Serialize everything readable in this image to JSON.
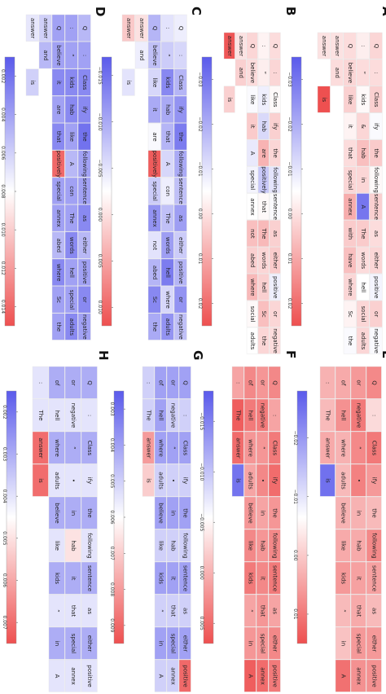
{
  "chart_data": [
    {
      "type": "heatmap",
      "panel": "A",
      "colorbar": {
        "ticks": [
          "−0.03",
          "−0.02",
          "−0.01",
          "0.00",
          "0.01",
          "0.02"
        ],
        "vmin": -0.035,
        "vmax": 0.025
      },
      "rows": [
        [
          "Q",
          ":",
          "Class",
          "ify",
          "the",
          "following",
          "sentence",
          "as",
          "either",
          "positive",
          "or",
          "negative"
        ],
        [
          ":",
          "“",
          "kids",
          "&",
          "hab",
          "in",
          "A",
          "The",
          "words",
          "hell",
          "social",
          "adults"
        ],
        [
          "Q",
          "believe",
          "like",
          "it",
          "that",
          "special",
          "annex",
          "with",
          "have",
          "where",
          "Sc",
          "the"
        ],
        [
          "answer",
          "and",
          "",
          "",
          "",
          "",
          "",
          "",
          "",
          "",
          "",
          ""
        ],
        [
          "answer",
          "",
          "is",
          "",
          "",
          "",
          "",
          "",
          "",
          "",
          "",
          ""
        ]
      ],
      "values": [
        [
          0.002,
          0.001,
          0.003,
          -0.006,
          0.004,
          -0.004,
          0.003,
          0.001,
          0.002,
          -0.007,
          0.003,
          -0.006
        ],
        [
          -0.002,
          0.001,
          -0.004,
          0.002,
          0.006,
          0.002,
          -0.03,
          0.004,
          0.001,
          -0.005,
          0.002,
          0.002
        ],
        [
          0.001,
          0.002,
          0.003,
          -0.003,
          0.001,
          0.002,
          0.009,
          0.004,
          0.006,
          0.002,
          -0.003,
          -0.006
        ],
        [
          0.0,
          0.001,
          null,
          null,
          null,
          null,
          null,
          null,
          null,
          null,
          null,
          null
        ],
        [
          0.0,
          null,
          0.025,
          null,
          null,
          null,
          null,
          null,
          null,
          null,
          null,
          null
        ]
      ]
    },
    {
      "type": "heatmap",
      "panel": "B",
      "colorbar": {
        "ticks": [
          "−0.03",
          "−0.02",
          "−0.01",
          "0.00",
          "0.01",
          "0.02"
        ],
        "vmin": -0.035,
        "vmax": 0.025
      },
      "rows": [
        [
          "Q",
          ":",
          "Class",
          "ify",
          "the",
          "following",
          "sentence",
          "as",
          "either",
          "positive",
          "or",
          "negative"
        ],
        [
          ":",
          "“",
          "kids",
          "hab",
          "are",
          "positively",
          "that",
          "The",
          "words",
          "hell",
          "Sc",
          "the"
        ],
        [
          "Q",
          "believe",
          "like",
          "it",
          "A",
          "special",
          "annex",
          "not",
          "abed",
          "where",
          "social",
          "adults"
        ],
        [
          "answer",
          "and",
          "",
          "",
          "",
          "",
          "",
          "",
          "",
          "",
          "",
          ""
        ],
        [
          "answer",
          "",
          "is",
          "",
          "",
          "",
          "",
          "",
          "",
          "",
          "",
          ""
        ]
      ],
      "values": [
        [
          0.001,
          0.002,
          -0.004,
          0.003,
          0.002,
          -0.01,
          -0.006,
          0.003,
          0.004,
          -0.008,
          0.002,
          0.001
        ],
        [
          -0.003,
          -0.002,
          -0.008,
          -0.012,
          0.008,
          -0.015,
          -0.004,
          0.007,
          0.002,
          0.003,
          0.006,
          0.002
        ],
        [
          0.002,
          0.001,
          -0.006,
          0.004,
          -0.009,
          -0.007,
          -0.005,
          0.006,
          0.003,
          0.007,
          -0.004,
          -0.005
        ],
        [
          0.0,
          0.003,
          null,
          null,
          null,
          null,
          null,
          null,
          null,
          null,
          null,
          null
        ],
        [
          0.024,
          null,
          0.003,
          null,
          null,
          null,
          null,
          null,
          null,
          null,
          null,
          null
        ]
      ]
    },
    {
      "type": "heatmap",
      "panel": "C",
      "colorbar": {
        "ticks": [
          "−0.015",
          "−0.010",
          "−0.005",
          "0.000",
          "0.005",
          "0.010"
        ],
        "vmin": -0.017,
        "vmax": 0.012
      },
      "rows": [
        [
          "Q",
          ":",
          "Class",
          "ify",
          "the",
          "following",
          "sentence",
          "as",
          "either",
          "positive",
          "or",
          "negative"
        ],
        [
          ":",
          "“",
          "kids",
          "hab",
          "that",
          "A",
          "con",
          "The",
          "words",
          "hell",
          "where",
          "adults"
        ],
        [
          "Q",
          "believe",
          "like",
          "it",
          "are",
          "positively",
          "special",
          "annex",
          "not",
          "abed",
          "Sc",
          "the"
        ],
        [
          "answer",
          "and",
          "",
          "",
          "",
          "",
          "",
          "",
          "",
          "",
          "",
          ""
        ],
        [
          "answer",
          "",
          "is",
          "",
          "",
          "",
          "",
          "",
          "",
          "",
          "",
          ""
        ]
      ],
      "values": [
        [
          -0.004,
          -0.006,
          -0.009,
          -0.012,
          -0.014,
          -0.01,
          -0.008,
          -0.011,
          -0.007,
          -0.009,
          -0.012,
          -0.008
        ],
        [
          -0.005,
          -0.007,
          -0.013,
          -0.01,
          -0.009,
          -0.006,
          -0.004,
          -0.008,
          -0.011,
          -0.014,
          -0.006,
          -0.012
        ],
        [
          -0.009,
          -0.008,
          -0.006,
          -0.01,
          -0.003,
          0.011,
          -0.007,
          -0.012,
          -0.005,
          -0.009,
          -0.013,
          -0.01
        ],
        [
          0.0,
          -0.004,
          null,
          null,
          null,
          null,
          null,
          null,
          null,
          null,
          null,
          null
        ],
        [
          0.002,
          null,
          -0.005,
          null,
          null,
          null,
          null,
          null,
          null,
          null,
          null,
          null
        ]
      ]
    },
    {
      "type": "heatmap",
      "panel": "D",
      "colorbar": {
        "ticks": [
          "0.002",
          "0.004",
          "0.006",
          "0.008",
          "0.010",
          "0.012",
          "0.014"
        ],
        "vmin": 0.001,
        "vmax": 0.015
      },
      "rows": [
        [
          "Q",
          ":",
          "Class",
          "ify",
          "the",
          "following",
          "sentence",
          "as",
          "either",
          "positive",
          "or",
          "negative"
        ],
        [
          ":",
          "“",
          "kids",
          "hab",
          "like",
          "A",
          "con",
          "The",
          "words",
          "hell",
          "special",
          "adults"
        ],
        [
          "Q",
          "believe",
          "it",
          "are",
          "that",
          "positively",
          "special",
          "annex",
          "abed",
          "where",
          "Sc",
          "the"
        ],
        [
          "answer",
          "and",
          "",
          "",
          "",
          "",
          "",
          "",
          "",
          "",
          "",
          ""
        ],
        [
          "answer",
          "",
          "is",
          "",
          "",
          "",
          "",
          "",
          "",
          "",
          "",
          ""
        ]
      ],
      "values": [
        [
          0.005,
          0.004,
          0.003,
          0.003,
          0.002,
          0.004,
          0.004,
          0.003,
          0.005,
          0.004,
          0.003,
          0.004
        ],
        [
          0.004,
          0.004,
          0.003,
          0.003,
          0.004,
          0.005,
          0.004,
          0.004,
          0.003,
          0.004,
          0.004,
          0.003
        ],
        [
          0.004,
          0.004,
          0.003,
          0.004,
          0.003,
          0.014,
          0.004,
          0.004,
          0.005,
          0.003,
          0.004,
          0.004
        ],
        [
          0.006,
          0.005,
          null,
          null,
          null,
          null,
          null,
          null,
          null,
          null,
          null,
          null
        ],
        [
          0.007,
          null,
          0.006,
          null,
          null,
          null,
          null,
          null,
          null,
          null,
          null,
          null
        ]
      ]
    },
    {
      "type": "heatmap",
      "panel": "E",
      "colorbar": {
        "ticks": [
          "−0.02",
          "−0.01",
          "0.00",
          "0.01"
        ],
        "vmin": -0.028,
        "vmax": 0.015
      },
      "columns": [
        [
          "Q",
          ":",
          "Class",
          "ify",
          "the",
          "following",
          "sentence",
          "as",
          "either",
          "positive"
        ],
        [
          "or",
          "negative",
          "“",
          "•",
          "in",
          "hab",
          "it",
          "that",
          "special",
          "annex"
        ],
        [
          "of",
          "hell",
          "where",
          "adults",
          "believe",
          "like",
          "kids",
          "”",
          "in",
          "A"
        ],
        [
          ":",
          "The",
          "answer",
          "is",
          "",
          "",
          "",
          "",
          "",
          ""
        ]
      ],
      "values": [
        [
          0.008,
          -0.002,
          0.01,
          0.006,
          0.002,
          0.008,
          0.005,
          0.002,
          0.006,
          0.007
        ],
        [
          0.006,
          0.01,
          0.008,
          0.009,
          0.003,
          0.004,
          0.005,
          0.004,
          0.006,
          0.007
        ],
        [
          0.004,
          0.007,
          0.003,
          0.002,
          0.003,
          0.004,
          0.006,
          0.002,
          0.001,
          0.011
        ],
        [
          0.003,
          0.002,
          0.004,
          -0.025,
          null,
          null,
          null,
          null,
          null,
          null
        ]
      ]
    },
    {
      "type": "heatmap",
      "panel": "F",
      "colorbar": {
        "ticks": [
          "−0.015",
          "−0.010",
          "−0.005",
          "0.000",
          "0.005"
        ],
        "vmin": -0.018,
        "vmax": 0.007
      },
      "columns": [
        [
          "Q",
          ":",
          "Class",
          "ify",
          "the",
          "following",
          "sentence",
          "as",
          "either",
          "positive"
        ],
        [
          "or",
          "negative",
          "“",
          "•",
          "in",
          "hab",
          "it",
          "that",
          "special",
          "annex"
        ],
        [
          "of",
          "hell",
          "where",
          "adults",
          "believe",
          "like",
          "kids",
          "”",
          "in",
          "A"
        ],
        [
          ":",
          "The",
          "answer",
          "is",
          "",
          "",
          "",
          "",
          "",
          ""
        ]
      ],
      "values": [
        [
          0.003,
          0.001,
          0.004,
          0.005,
          0.002,
          0.003,
          0.004,
          0.001,
          0.003,
          0.004
        ],
        [
          0.002,
          0.004,
          0.002,
          0.003,
          0.001,
          0.002,
          0.003,
          0.002,
          0.002,
          0.005
        ],
        [
          0.003,
          0.004,
          0.002,
          0.001,
          0.002,
          0.003,
          0.004,
          0.001,
          0.002,
          0.006
        ],
        [
          0.001,
          0.006,
          0.005,
          -0.016,
          null,
          null,
          null,
          null,
          null,
          null
        ]
      ]
    },
    {
      "type": "heatmap",
      "panel": "G",
      "colorbar": {
        "ticks": [
          "0.003",
          "0.004",
          "0.005",
          "0.006",
          "0.007",
          "0.008",
          "0.009"
        ],
        "vmin": 0.0025,
        "vmax": 0.0095
      },
      "columns": [
        [
          "Q",
          ":",
          "Class",
          "ify",
          "the",
          "following",
          "sentence",
          "as",
          "either",
          "positive"
        ],
        [
          "or",
          "negative",
          "“",
          "•",
          "in",
          "hab",
          "it",
          "that",
          "special",
          "annex"
        ],
        [
          "of",
          "hell",
          "where",
          "adults",
          "believe",
          "like",
          "kids",
          "”",
          "in",
          "A"
        ],
        [
          ":",
          "The",
          "answer",
          "is",
          "",
          "",
          "",
          "",
          "",
          ""
        ]
      ],
      "values": [
        [
          0.004,
          0.005,
          0.004,
          0.005,
          0.004,
          0.005,
          0.004,
          0.005,
          0.004,
          0.009
        ],
        [
          0.004,
          0.005,
          0.004,
          0.005,
          0.004,
          0.005,
          0.004,
          0.005,
          0.004,
          0.005
        ],
        [
          0.004,
          0.004,
          0.004,
          0.005,
          0.004,
          0.005,
          0.004,
          0.005,
          0.004,
          0.005
        ],
        [
          0.005,
          0.005,
          0.008,
          0.007,
          null,
          null,
          null,
          null,
          null,
          null
        ]
      ]
    },
    {
      "type": "heatmap",
      "panel": "H",
      "colorbar": {
        "ticks": [
          "0.002",
          "0.003",
          "0.004",
          "0.005",
          "0.006",
          "0.007"
        ],
        "vmin": 0.0015,
        "vmax": 0.0075
      },
      "columns": [
        [
          "Q",
          ":",
          "Class",
          "ify",
          "the",
          "following",
          "sentence",
          "as",
          "either",
          "positive"
        ],
        [
          "or",
          "negative",
          "“",
          "•",
          "in",
          "hab",
          "it",
          "that",
          "special",
          "annex"
        ],
        [
          "of",
          "hell",
          "where",
          "adults",
          "believe",
          "like",
          "kids",
          "”",
          "in",
          "A"
        ],
        [
          ":",
          "The",
          "answer",
          "is",
          "",
          "",
          "",
          "",
          "",
          ""
        ]
      ],
      "values": [
        [
          0.003,
          0.004,
          0.003,
          0.004,
          0.003,
          0.004,
          0.003,
          0.004,
          0.003,
          0.004
        ],
        [
          0.003,
          0.004,
          0.003,
          0.004,
          0.003,
          0.005,
          0.003,
          0.004,
          0.003,
          0.004
        ],
        [
          0.003,
          0.004,
          0.003,
          0.004,
          0.003,
          0.004,
          0.003,
          0.004,
          0.003,
          0.004
        ],
        [
          0.004,
          0.004,
          0.007,
          0.007,
          null,
          null,
          null,
          null,
          null,
          null
        ]
      ]
    }
  ]
}
